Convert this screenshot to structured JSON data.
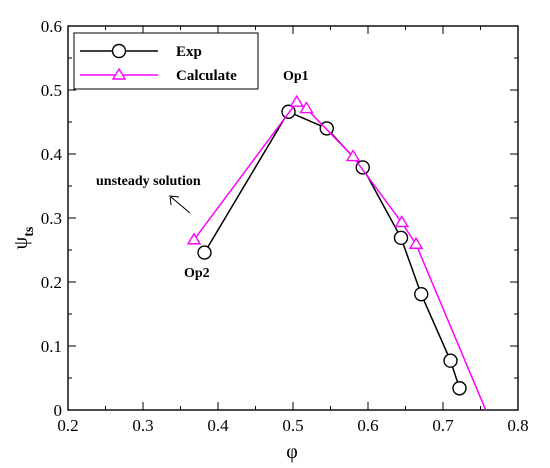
{
  "chart_data": {
    "type": "line",
    "xlabel": "φ",
    "ylabel_main": "ψ",
    "ylabel_sub": "ts",
    "xlim": [
      0.2,
      0.8
    ],
    "ylim": [
      0,
      0.6
    ],
    "x_ticks": [
      "0.2",
      "0.3",
      "0.4",
      "0.5",
      "0.6",
      "0.7",
      "0.8"
    ],
    "y_ticks": [
      "0",
      "0.1",
      "0.2",
      "0.3",
      "0.4",
      "0.5",
      "0.6"
    ],
    "grid": false,
    "legend_position": "top-left",
    "series": [
      {
        "name": "Exp",
        "color": "#000000",
        "marker": "circle",
        "points": [
          [
            0.382,
            0.246
          ],
          [
            0.494,
            0.466
          ],
          [
            0.545,
            0.44
          ],
          [
            0.593,
            0.379
          ],
          [
            0.644,
            0.269
          ],
          [
            0.671,
            0.181
          ],
          [
            0.71,
            0.077
          ],
          [
            0.722,
            0.034
          ]
        ]
      },
      {
        "name": "Calculate",
        "color": "#ff00ff",
        "marker": "triangle",
        "points": [
          [
            0.368,
            0.266
          ],
          [
            0.505,
            0.481
          ],
          [
            0.518,
            0.471
          ],
          [
            0.58,
            0.396
          ],
          [
            0.645,
            0.293
          ],
          [
            0.664,
            0.259
          ],
          [
            0.757,
            0.0
          ]
        ]
      }
    ],
    "annotations": {
      "op1": "Op1",
      "op2": "Op2",
      "unsteady": "unsteady solution"
    }
  }
}
